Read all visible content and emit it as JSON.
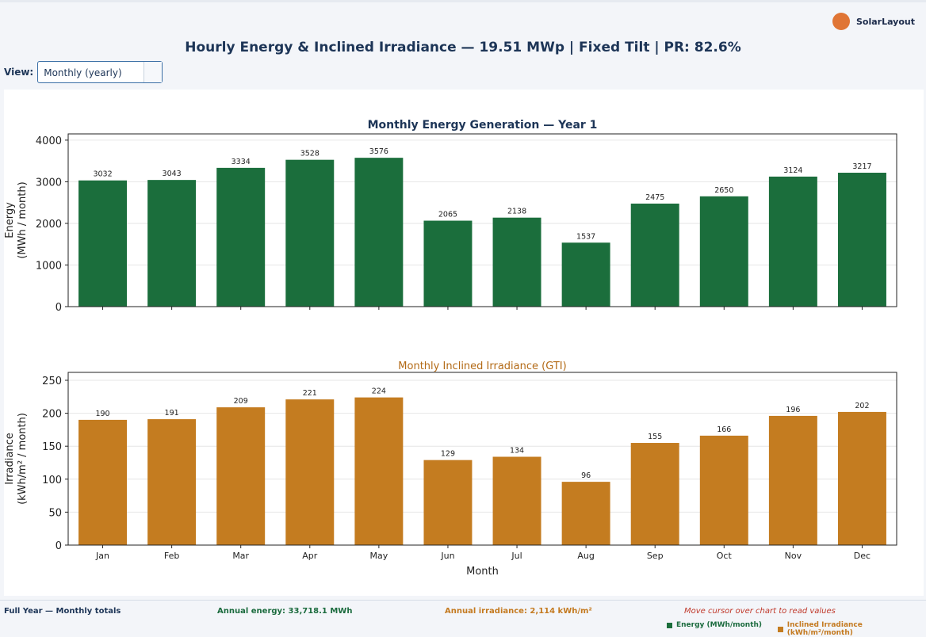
{
  "brand": {
    "name": "SolarLayout",
    "color": "#e07535"
  },
  "title": "Hourly Energy & Inclined Irradiance  —  19.51 MWp  |  Fixed Tilt  |  PR: 82.6%",
  "view": {
    "label": "View:",
    "selected": "Monthly (yearly)"
  },
  "chart_data": [
    {
      "type": "bar",
      "title": "Monthly Energy Generation — Year 1",
      "categories": [
        "Jan",
        "Feb",
        "Mar",
        "Apr",
        "May",
        "Jun",
        "Jul",
        "Aug",
        "Sep",
        "Oct",
        "Nov",
        "Dec"
      ],
      "values": [
        3032,
        3043,
        3334,
        3528,
        3576,
        2065,
        2138,
        1537,
        2475,
        2650,
        3124,
        3217
      ],
      "value_labels": [
        "3032",
        "3043",
        "3334",
        "3528",
        "3576",
        "2065",
        "2138",
        "1537",
        "2475",
        "2650",
        "3124",
        "3217"
      ],
      "ylabel": "Energy\n(MWh / month)",
      "ylabel_lines": [
        "Energy",
        "(MWh / month)"
      ],
      "ylim": [
        0,
        4150
      ],
      "yticks": [
        0,
        1000,
        2000,
        3000,
        4000
      ],
      "ytick_labels": [
        "0",
        "1000",
        "2000",
        "3000",
        "4000"
      ],
      "color": "#1b6e3c",
      "grid": true
    },
    {
      "type": "bar",
      "title": "Monthly Inclined Irradiance (GTI)",
      "categories": [
        "Jan",
        "Feb",
        "Mar",
        "Apr",
        "May",
        "Jun",
        "Jul",
        "Aug",
        "Sep",
        "Oct",
        "Nov",
        "Dec"
      ],
      "values": [
        190,
        191,
        209,
        221,
        224,
        129,
        134,
        96,
        155,
        166,
        196,
        202
      ],
      "value_labels": [
        "190",
        "191",
        "209",
        "221",
        "224",
        "129",
        "134",
        "96",
        "155",
        "166",
        "196",
        "202"
      ],
      "xlabel": "Month",
      "ylabel": "Irradiance\n(kWh/m² / month)",
      "ylabel_lines": [
        "Irradiance",
        "(kWh/m² / month)"
      ],
      "ylim": [
        0,
        262
      ],
      "yticks": [
        0,
        50,
        100,
        150,
        200,
        250
      ],
      "ytick_labels": [
        "0",
        "50",
        "100",
        "150",
        "200",
        "250"
      ],
      "color": "#c47c20",
      "grid": true
    }
  ],
  "footer": {
    "period": "Full Year — Monthly totals",
    "annual_energy": "Annual energy: 33,718.1 MWh",
    "annual_irradiance": "Annual irradiance: 2,114 kWh/m²",
    "hint": "Move cursor over chart to read values",
    "legend": [
      {
        "label": "Energy (MWh/month)",
        "color": "#1b6e3c"
      },
      {
        "label": "Inclined Irradiance (kWh/m²/month)",
        "color": "#c47c20"
      }
    ]
  }
}
